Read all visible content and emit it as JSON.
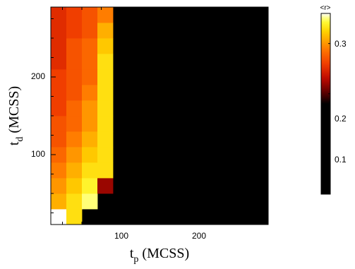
{
  "chart_data": {
    "type": "heatmap",
    "title": "",
    "xlabel": {
      "main": "t",
      "sub": "p",
      "unit": " (MCSS)"
    },
    "ylabel": {
      "main": "t",
      "sub": "d",
      "unit": " (MCSS)"
    },
    "xlim": [
      10,
      290
    ],
    "ylim": [
      10,
      290
    ],
    "x_ticks": [
      100,
      200
    ],
    "y_ticks": [
      100,
      200
    ],
    "cell_size": 20,
    "x_centers": [
      20,
      40,
      60,
      80
    ],
    "y_centers": [
      20,
      40,
      60,
      80,
      100,
      120,
      140,
      160,
      180,
      200,
      220,
      240,
      260,
      280
    ],
    "values": [
      [
        0.36,
        0.33,
        null,
        null
      ],
      [
        0.31,
        0.33,
        0.35,
        null
      ],
      [
        0.3,
        0.32,
        0.34,
        0.22
      ],
      [
        0.29,
        0.31,
        0.33,
        0.33
      ],
      [
        0.28,
        0.3,
        0.32,
        0.33
      ],
      [
        0.27,
        0.29,
        0.31,
        0.33
      ],
      [
        0.27,
        0.28,
        0.3,
        0.33
      ],
      [
        0.26,
        0.28,
        0.3,
        0.33
      ],
      [
        0.26,
        0.27,
        0.29,
        0.33
      ],
      [
        0.26,
        0.27,
        0.28,
        0.33
      ],
      [
        0.25,
        0.27,
        0.28,
        0.33
      ],
      [
        0.25,
        0.27,
        0.28,
        0.32
      ],
      [
        0.25,
        0.26,
        0.27,
        0.31
      ],
      [
        0.25,
        0.26,
        0.27,
        0.29
      ]
    ],
    "background_value": 0,
    "colorbar": {
      "title": "<r>",
      "ticks": [
        0.1,
        0.2,
        0.3
      ],
      "range": [
        0,
        0.36
      ]
    },
    "colors": {
      "background": "#000000",
      "axis": "#000000",
      "frame": "#ffffff"
    },
    "grid": false,
    "legend": "none"
  }
}
